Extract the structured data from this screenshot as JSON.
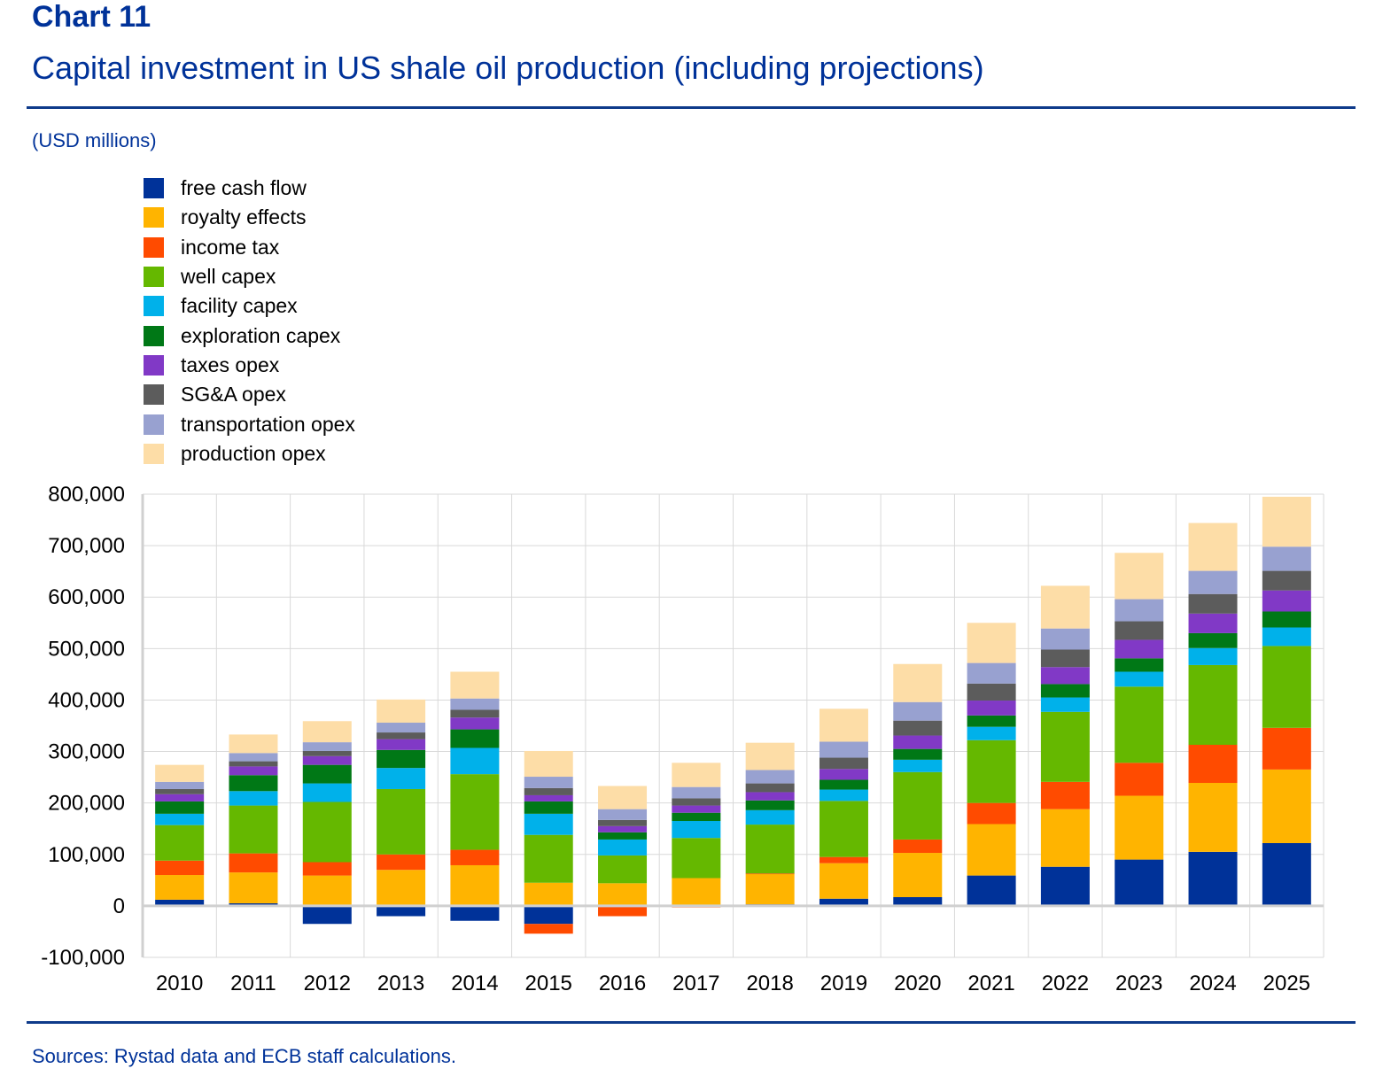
{
  "header": {
    "chart_number": "Chart 11",
    "title": "Capital investment in US shale oil production (including projections)",
    "unit": "(USD millions)"
  },
  "footer": {
    "source": "Sources: Rystad data and ECB staff calculations."
  },
  "colors": {
    "title": "#003299",
    "rule": "#0e3a8a",
    "grid": "#d9d9d9"
  },
  "chart_data": {
    "type": "bar",
    "stacked": true,
    "title": "Capital investment in US shale oil production (including projections)",
    "xlabel": "",
    "ylabel": "(USD millions)",
    "ylim": [
      -100000,
      800000
    ],
    "yticks": [
      -100000,
      0,
      100000,
      200000,
      300000,
      400000,
      500000,
      600000,
      700000,
      800000
    ],
    "ytick_labels": [
      "-100,000",
      "0",
      "100,000",
      "200,000",
      "300,000",
      "400,000",
      "500,000",
      "600,000",
      "700,000",
      "800,000"
    ],
    "grid": true,
    "legend_position": "top-left",
    "categories": [
      "2010",
      "2011",
      "2012",
      "2013",
      "2014",
      "2015",
      "2016",
      "2017",
      "2018",
      "2019",
      "2020",
      "2021",
      "2022",
      "2023",
      "2024",
      "2025"
    ],
    "series": [
      {
        "name": "free cash flow",
        "color": "#003299",
        "values": [
          12000,
          5000,
          -35000,
          -20000,
          -29000,
          -35000,
          2000,
          2000,
          3000,
          14000,
          17000,
          59000,
          76000,
          90000,
          105000,
          122000
        ]
      },
      {
        "name": "royalty effects",
        "color": "#ffb400",
        "values": [
          48000,
          60000,
          59000,
          70000,
          79000,
          45000,
          42000,
          52000,
          59000,
          69000,
          86000,
          100000,
          112000,
          124000,
          134000,
          143000
        ]
      },
      {
        "name": "income tax",
        "color": "#ff4b00",
        "values": [
          28000,
          37000,
          26000,
          30000,
          30000,
          -19000,
          -20000,
          -3000,
          1000,
          12000,
          26000,
          41000,
          53000,
          64000,
          74000,
          81000
        ]
      },
      {
        "name": "well capex",
        "color": "#65b800",
        "values": [
          69000,
          93000,
          117000,
          127000,
          147000,
          93000,
          54000,
          78000,
          95000,
          109000,
          131000,
          122000,
          136000,
          148000,
          155000,
          159000
        ]
      },
      {
        "name": "facility capex",
        "color": "#00b1ea",
        "values": [
          22000,
          28000,
          36000,
          41000,
          51000,
          41000,
          31000,
          33000,
          28000,
          22000,
          24000,
          26000,
          28000,
          29000,
          33000,
          36000
        ]
      },
      {
        "name": "exploration capex",
        "color": "#007816",
        "values": [
          24000,
          31000,
          36000,
          35000,
          36000,
          24000,
          14000,
          16000,
          19000,
          19000,
          21000,
          22000,
          26000,
          26000,
          29000,
          31000
        ]
      },
      {
        "name": "taxes opex",
        "color": "#8139c6",
        "values": [
          14000,
          17000,
          17000,
          21000,
          23000,
          12000,
          12000,
          14000,
          16000,
          21000,
          26000,
          29000,
          33000,
          36000,
          38000,
          41000
        ]
      },
      {
        "name": "SG&A opex",
        "color": "#5c5c5c",
        "values": [
          10000,
          10000,
          10000,
          13000,
          15000,
          14000,
          12000,
          14000,
          17000,
          22000,
          29000,
          33000,
          34000,
          36000,
          38000,
          38000
        ]
      },
      {
        "name": "transportation opex",
        "color": "#98a1d0",
        "values": [
          14000,
          16000,
          17000,
          19000,
          22000,
          22000,
          21000,
          22000,
          26000,
          31000,
          36000,
          40000,
          41000,
          43000,
          45000,
          47000
        ]
      },
      {
        "name": "production opex",
        "color": "#fddda7",
        "values": [
          33000,
          36000,
          41000,
          45000,
          52000,
          50000,
          45000,
          47000,
          53000,
          64000,
          74000,
          78000,
          83000,
          90000,
          93000,
          97000
        ]
      }
    ]
  }
}
